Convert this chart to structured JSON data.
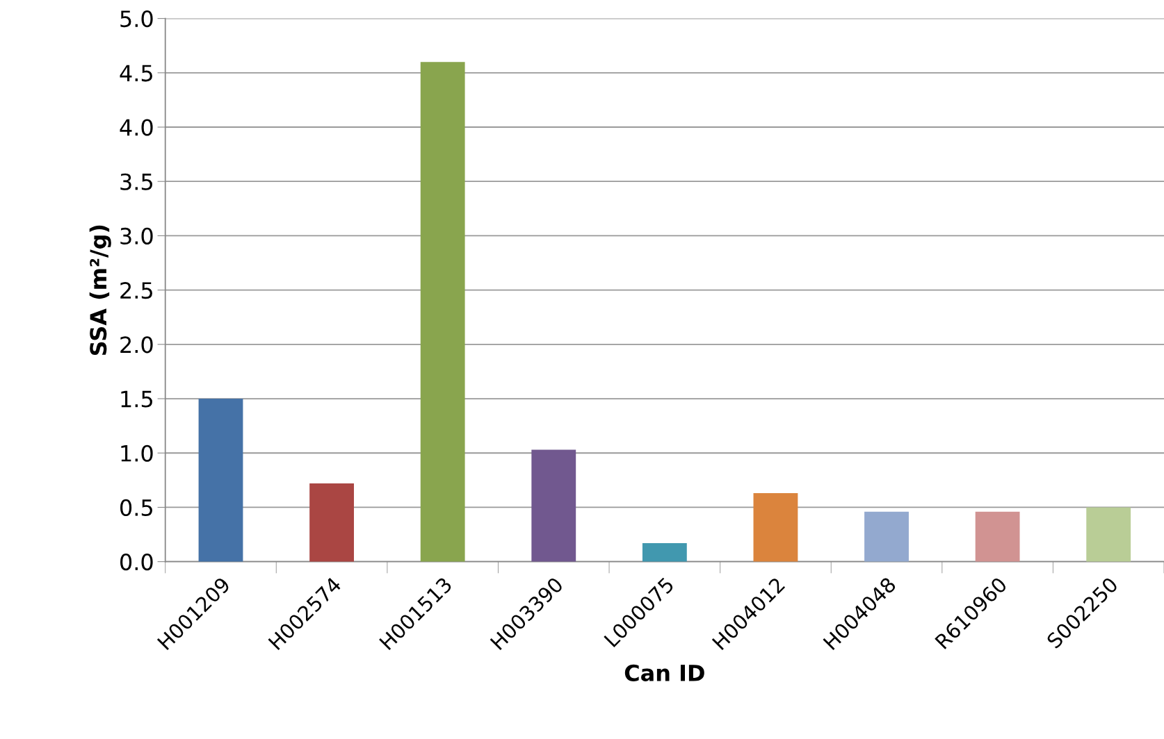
{
  "chart_data": {
    "type": "bar",
    "xlabel": "Can ID",
    "ylabel": "SSA (m²/g)",
    "categories": [
      "H001209",
      "H002574",
      "H001513",
      "H003390",
      "L000075",
      "H004012",
      "H004048",
      "R610960",
      "S002250"
    ],
    "values": [
      1.5,
      0.72,
      4.6,
      1.03,
      0.17,
      0.63,
      0.46,
      0.46,
      0.5
    ],
    "colors": [
      "#4572a7",
      "#aa4643",
      "#89a54e",
      "#71588f",
      "#4198af",
      "#db843d",
      "#93a9cf",
      "#d19392",
      "#b9cd96"
    ],
    "ylim": [
      0,
      5
    ],
    "yticks": [
      {
        "value": 0,
        "label": "0.0"
      },
      {
        "value": 0.5,
        "label": "0.5"
      },
      {
        "value": 1,
        "label": "1.0"
      },
      {
        "value": 1.5,
        "label": "1.5"
      },
      {
        "value": 2,
        "label": "2.0"
      },
      {
        "value": 2.5,
        "label": "2.5"
      },
      {
        "value": 3,
        "label": "3.0"
      },
      {
        "value": 3.5,
        "label": "3.5"
      },
      {
        "value": 4,
        "label": "4.0"
      },
      {
        "value": 4.5,
        "label": "4.5"
      },
      {
        "value": 5,
        "label": "5.0"
      }
    ],
    "grid": "y"
  }
}
